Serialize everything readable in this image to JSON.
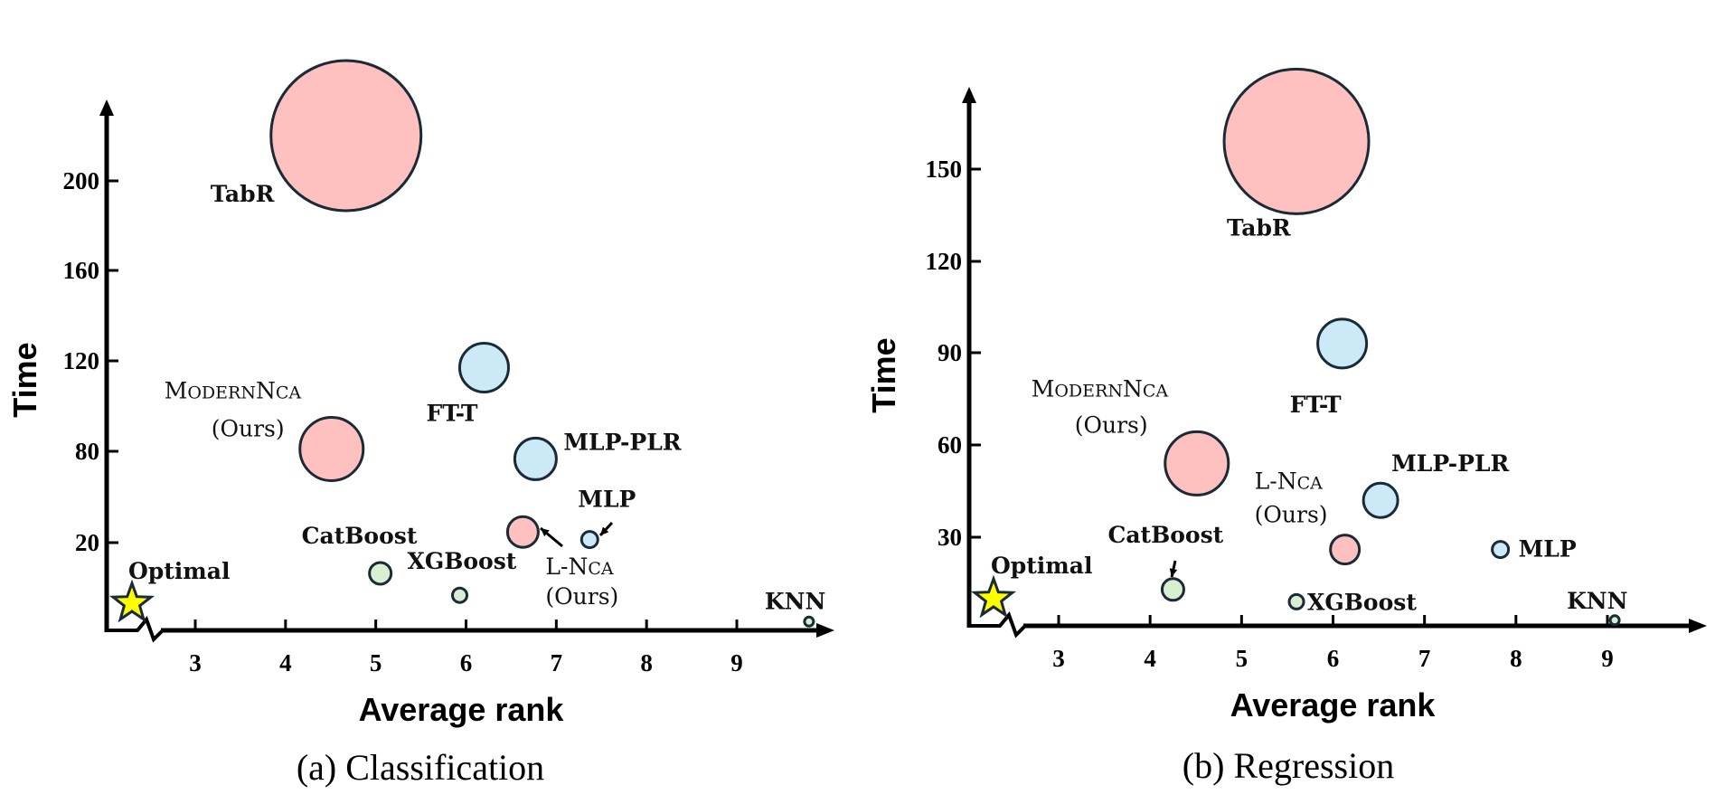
{
  "chart_data": [
    {
      "type": "scatter",
      "subtype": "bubble",
      "title": "(a) Classification",
      "xlabel": "Average rank",
      "ylabel": "Time",
      "x_ticks": [
        3,
        4,
        5,
        6,
        7,
        8,
        9
      ],
      "y_ticks": [
        20,
        80,
        120,
        160,
        200
      ],
      "xlim": [
        2,
        10
      ],
      "ylim": [
        0,
        240
      ],
      "axis_break": "x-axis break near origin; y-axis non-uniform between 20 and 80",
      "grid": false,
      "legend": "none",
      "optimal": {
        "label": "Optimal",
        "marker": "star",
        "color": "#FFFF00"
      },
      "points": [
        {
          "name": "TabR",
          "label": "TabR",
          "x": 4.67,
          "y": 220,
          "size": 83,
          "group": "nca",
          "color": "#FFC0C0"
        },
        {
          "name": "ModernNCA",
          "label": "MODERNNCA",
          "sub": "(Ours)",
          "x": 4.51,
          "y": 81,
          "size": 35,
          "group": "nca",
          "color": "#FFC0C0"
        },
        {
          "name": "FT-T",
          "label": "FT-T",
          "x": 6.2,
          "y": 117,
          "size": 27,
          "group": "deep",
          "color": "#CCE9F8"
        },
        {
          "name": "MLP-PLR",
          "label": "MLP-PLR",
          "x": 6.77,
          "y": 75,
          "size": 23,
          "group": "deep",
          "color": "#CCE9F8"
        },
        {
          "name": "L-NCA",
          "label": "L-NCA",
          "sub": "(Ours)",
          "x": 6.63,
          "y": 27,
          "size": 17,
          "group": "nca",
          "color": "#FFC0C0"
        },
        {
          "name": "MLP",
          "label": "MLP",
          "x": 7.37,
          "y": 22,
          "size": 9,
          "group": "deep",
          "color": "#CCE9F8"
        },
        {
          "name": "CatBoost",
          "label": "CatBoost",
          "x": 5.05,
          "y": 13,
          "size": 12,
          "group": "tree",
          "color": "#D9EFD2"
        },
        {
          "name": "XGBoost",
          "label": "XGBoost",
          "x": 5.93,
          "y": 8,
          "size": 8,
          "group": "tree",
          "color": "#D9EFD2"
        },
        {
          "name": "KNN",
          "label": "KNN",
          "x": 9.8,
          "y": 2,
          "size": 5,
          "group": "tree",
          "color": "#D9EFD2"
        }
      ]
    },
    {
      "type": "scatter",
      "subtype": "bubble",
      "title": "(b) Regression",
      "xlabel": "Average rank",
      "ylabel": "Time",
      "x_ticks": [
        3,
        4,
        5,
        6,
        7,
        8,
        9
      ],
      "y_ticks": [
        30,
        60,
        90,
        120,
        150
      ],
      "xlim": [
        2,
        10
      ],
      "ylim": [
        0,
        180
      ],
      "axis_break": "x-axis break near origin",
      "grid": false,
      "legend": "none",
      "optimal": {
        "label": "Optimal",
        "marker": "star",
        "color": "#FFFF00"
      },
      "points": [
        {
          "name": "TabR",
          "label": "TabR",
          "x": 5.6,
          "y": 159,
          "size": 80,
          "group": "nca",
          "color": "#FFC0C0"
        },
        {
          "name": "ModernNCA",
          "label": "MODERNNCA",
          "sub": "(Ours)",
          "x": 4.51,
          "y": 54,
          "size": 35,
          "group": "nca",
          "color": "#FFC0C0"
        },
        {
          "name": "FT-T",
          "label": "FT-T",
          "x": 6.1,
          "y": 93,
          "size": 27,
          "group": "deep",
          "color": "#CCE9F8"
        },
        {
          "name": "MLP-PLR",
          "label": "MLP-PLR",
          "x": 6.52,
          "y": 42,
          "size": 19,
          "group": "deep",
          "color": "#CCE9F8"
        },
        {
          "name": "L-NCA",
          "label": "L-NCA",
          "sub": "(Ours)",
          "x": 6.13,
          "y": 26,
          "size": 16,
          "group": "nca",
          "color": "#FFC0C0"
        },
        {
          "name": "MLP",
          "label": "MLP",
          "x": 7.83,
          "y": 26,
          "size": 9,
          "group": "deep",
          "color": "#CCE9F8"
        },
        {
          "name": "CatBoost",
          "label": "CatBoost",
          "x": 4.25,
          "y": 13,
          "size": 12,
          "group": "tree",
          "color": "#D9EFD2"
        },
        {
          "name": "XGBoost",
          "label": "XGBoost",
          "x": 5.6,
          "y": 9,
          "size": 8,
          "group": "tree",
          "color": "#D9EFD2"
        },
        {
          "name": "KNN",
          "label": "KNN",
          "x": 9.08,
          "y": 3,
          "size": 5,
          "group": "tree",
          "color": "#D9EFD2"
        }
      ]
    }
  ],
  "colors": {
    "outline": "#1A2A36",
    "axis": "#000000"
  }
}
